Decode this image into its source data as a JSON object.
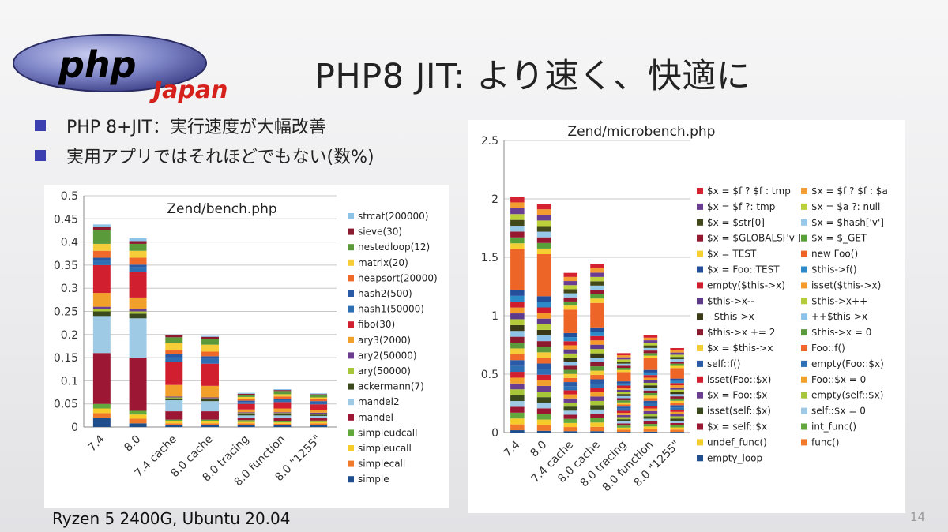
{
  "slide": {
    "title": "PHP8 JIT:  より速く、快適に",
    "logo_text": "php",
    "logo_sub": "Japan",
    "bullets": [
      "PHP 8+JIT：実行速度が大幅改善",
      "実用アプリではそれほどでもない(数%)"
    ],
    "footer": "Ryzen 5 2400G, Ubuntu 20.04",
    "page_number": "14"
  },
  "chart_data": [
    {
      "type": "bar",
      "stacked": true,
      "title": "Zend/bench.php",
      "ylim": [
        0,
        0.5
      ],
      "yticks": [
        "0",
        "0.05",
        "0.1",
        "0.15",
        "0.2",
        "0.25",
        "0.3",
        "0.35",
        "0.4",
        "0.45",
        "0.5"
      ],
      "grid": true,
      "legend_position": "right",
      "categories": [
        "7.4",
        "8.0",
        "7.4 cache",
        "8.0 cache",
        "8.0 tracing",
        "8.0 function",
        "8.0 \"1255\""
      ],
      "series": [
        {
          "name": "simple",
          "color": "#1f4e8c",
          "values": [
            0.02,
            0.008,
            0.005,
            0.005,
            0.004,
            0.004,
            0.004
          ]
        },
        {
          "name": "simplecall",
          "color": "#f07a2a",
          "values": [
            0.01,
            0.01,
            0.003,
            0.003,
            0.004,
            0.003,
            0.004
          ]
        },
        {
          "name": "simpleucall",
          "color": "#f5cc2a",
          "values": [
            0.01,
            0.009,
            0.004,
            0.004,
            0.003,
            0.003,
            0.003
          ]
        },
        {
          "name": "simpleudcall",
          "color": "#62a83d",
          "values": [
            0.01,
            0.008,
            0.004,
            0.004,
            0.004,
            0.003,
            0.003
          ]
        },
        {
          "name": "mandel",
          "color": "#9b1733",
          "values": [
            0.11,
            0.115,
            0.018,
            0.018,
            0.005,
            0.006,
            0.005
          ]
        },
        {
          "name": "mandel2",
          "color": "#9ecae6",
          "values": [
            0.08,
            0.085,
            0.024,
            0.022,
            0.005,
            0.006,
            0.005
          ]
        },
        {
          "name": "ackermann(7)",
          "color": "#3b4a1c",
          "values": [
            0.01,
            0.01,
            0.004,
            0.004,
            0.003,
            0.003,
            0.003
          ]
        },
        {
          "name": "ary(50000)",
          "color": "#a8c63a",
          "values": [
            0.005,
            0.005,
            0.002,
            0.002,
            0.002,
            0.002,
            0.002
          ]
        },
        {
          "name": "ary2(50000)",
          "color": "#6b3d8f",
          "values": [
            0.005,
            0.005,
            0.002,
            0.002,
            0.002,
            0.002,
            0.002
          ]
        },
        {
          "name": "ary3(2000)",
          "color": "#f2a02c",
          "values": [
            0.03,
            0.025,
            0.025,
            0.025,
            0.006,
            0.008,
            0.006
          ]
        },
        {
          "name": "fibo(30)",
          "color": "#d21f30",
          "values": [
            0.06,
            0.055,
            0.05,
            0.048,
            0.012,
            0.014,
            0.012
          ]
        },
        {
          "name": "hash1(50000)",
          "color": "#2e6fb3",
          "values": [
            0.01,
            0.01,
            0.01,
            0.01,
            0.004,
            0.004,
            0.004
          ]
        },
        {
          "name": "hash2(500)",
          "color": "#2a5aa6",
          "values": [
            0.006,
            0.006,
            0.006,
            0.006,
            0.003,
            0.003,
            0.003
          ]
        },
        {
          "name": "heapsort(20000)",
          "color": "#ef6a2a",
          "values": [
            0.015,
            0.015,
            0.01,
            0.01,
            0.004,
            0.005,
            0.004
          ]
        },
        {
          "name": "matrix(20)",
          "color": "#f4cd39",
          "values": [
            0.015,
            0.015,
            0.015,
            0.015,
            0.004,
            0.005,
            0.004
          ]
        },
        {
          "name": "nestedloop(12)",
          "color": "#5b9a3a",
          "values": [
            0.03,
            0.015,
            0.012,
            0.013,
            0.005,
            0.007,
            0.005
          ]
        },
        {
          "name": "sieve(30)",
          "color": "#8b1a2e",
          "values": [
            0.006,
            0.006,
            0.004,
            0.004,
            0.002,
            0.002,
            0.002
          ]
        },
        {
          "name": "strcat(200000)",
          "color": "#8ec3e8",
          "values": [
            0.006,
            0.006,
            0.002,
            0.002,
            0.002,
            0.002,
            0.002
          ]
        }
      ]
    },
    {
      "type": "bar",
      "stacked": true,
      "title": "Zend/microbench.php",
      "ylim": [
        0,
        2.5
      ],
      "yticks": [
        "0",
        "0.5",
        "1",
        "1.5",
        "2",
        "2.5"
      ],
      "grid": true,
      "legend_position": "right",
      "categories": [
        "7.4",
        "8.0",
        "7.4 cache",
        "8.0 cache",
        "8.0 tracing",
        "8.0 function",
        "8.0 \"1255\""
      ],
      "series": [
        {
          "name": "empty_loop",
          "color": "#1f4e8c",
          "values": [
            0.02,
            0.015,
            0.012,
            0.012,
            0.006,
            0.008,
            0.006
          ]
        },
        {
          "name": "func()",
          "color": "#f07a2a",
          "values": [
            0.05,
            0.048,
            0.035,
            0.037,
            0.018,
            0.022,
            0.019
          ]
        },
        {
          "name": "undef_func()",
          "color": "#f5cc2a",
          "values": [
            0.05,
            0.048,
            0.035,
            0.037,
            0.018,
            0.022,
            0.019
          ]
        },
        {
          "name": "int_func()",
          "color": "#62a83d",
          "values": [
            0.05,
            0.048,
            0.035,
            0.037,
            0.018,
            0.022,
            0.019
          ]
        },
        {
          "name": "$x = self::$x",
          "color": "#9b1733",
          "values": [
            0.05,
            0.048,
            0.035,
            0.037,
            0.018,
            0.022,
            0.019
          ]
        },
        {
          "name": "self::$x = 0",
          "color": "#9ecae6",
          "values": [
            0.05,
            0.048,
            0.035,
            0.037,
            0.018,
            0.022,
            0.019
          ]
        },
        {
          "name": "isset(self::$x)",
          "color": "#3b4a1c",
          "values": [
            0.05,
            0.048,
            0.035,
            0.037,
            0.018,
            0.022,
            0.019
          ]
        },
        {
          "name": "empty(self::$x)",
          "color": "#a8c63a",
          "values": [
            0.05,
            0.048,
            0.035,
            0.037,
            0.018,
            0.022,
            0.019
          ]
        },
        {
          "name": "$x = Foo::$x",
          "color": "#6b3d8f",
          "values": [
            0.05,
            0.048,
            0.035,
            0.037,
            0.018,
            0.022,
            0.019
          ]
        },
        {
          "name": "Foo::$x = 0",
          "color": "#f2a02c",
          "values": [
            0.05,
            0.048,
            0.035,
            0.037,
            0.018,
            0.022,
            0.019
          ]
        },
        {
          "name": "isset(Foo::$x)",
          "color": "#d21f30",
          "values": [
            0.05,
            0.048,
            0.035,
            0.037,
            0.018,
            0.022,
            0.019
          ]
        },
        {
          "name": "empty(Foo::$x)",
          "color": "#2e6fb3",
          "values": [
            0.05,
            0.048,
            0.035,
            0.037,
            0.018,
            0.022,
            0.019
          ]
        },
        {
          "name": "self::f()",
          "color": "#2a5aa6",
          "values": [
            0.05,
            0.048,
            0.035,
            0.037,
            0.018,
            0.022,
            0.019
          ]
        },
        {
          "name": "Foo::f()",
          "color": "#ef6a2a",
          "values": [
            0.05,
            0.048,
            0.035,
            0.037,
            0.018,
            0.022,
            0.019
          ]
        },
        {
          "name": "$x = $this->x",
          "color": "#f4cd39",
          "values": [
            0.05,
            0.048,
            0.035,
            0.037,
            0.018,
            0.022,
            0.019
          ]
        },
        {
          "name": "$this->x = 0",
          "color": "#5b9a3a",
          "values": [
            0.05,
            0.048,
            0.035,
            0.037,
            0.018,
            0.022,
            0.019
          ]
        },
        {
          "name": "$this->x += 2",
          "color": "#8b1a2e",
          "values": [
            0.05,
            0.048,
            0.035,
            0.037,
            0.018,
            0.022,
            0.019
          ]
        },
        {
          "name": "++$this->x",
          "color": "#8ec3e8",
          "values": [
            0.05,
            0.048,
            0.035,
            0.037,
            0.018,
            0.022,
            0.019
          ]
        },
        {
          "name": "--$this->x",
          "color": "#3a3a16",
          "values": [
            0.05,
            0.048,
            0.035,
            0.037,
            0.018,
            0.022,
            0.019
          ]
        },
        {
          "name": "$this->x++",
          "color": "#b4cc3a",
          "values": [
            0.05,
            0.048,
            0.035,
            0.037,
            0.018,
            0.022,
            0.019
          ]
        },
        {
          "name": "$this->x--",
          "color": "#5e3a8a",
          "values": [
            0.05,
            0.048,
            0.035,
            0.037,
            0.018,
            0.022,
            0.019
          ]
        },
        {
          "name": "isset($this->x)",
          "color": "#f39a2b",
          "values": [
            0.05,
            0.048,
            0.035,
            0.037,
            0.018,
            0.022,
            0.019
          ]
        },
        {
          "name": "empty($this->x)",
          "color": "#cf1d2d",
          "values": [
            0.05,
            0.048,
            0.035,
            0.037,
            0.018,
            0.022,
            0.019
          ]
        },
        {
          "name": "$this->f()",
          "color": "#2d8ac9",
          "values": [
            0.05,
            0.048,
            0.035,
            0.037,
            0.018,
            0.022,
            0.019
          ]
        },
        {
          "name": "$x = Foo::TEST",
          "color": "#234f9a",
          "values": [
            0.05,
            0.048,
            0.035,
            0.037,
            0.018,
            0.022,
            0.019
          ]
        },
        {
          "name": "new Foo()",
          "color": "#ee6528",
          "values": [
            0.35,
            0.36,
            0.2,
            0.21,
            0.08,
            0.1,
            0.09
          ]
        },
        {
          "name": "$x = TEST",
          "color": "#f6cf33",
          "values": [
            0.05,
            0.048,
            0.035,
            0.037,
            0.018,
            0.022,
            0.019
          ]
        },
        {
          "name": "$x = $_GET",
          "color": "#58a03a",
          "values": [
            0.05,
            0.048,
            0.035,
            0.037,
            0.018,
            0.022,
            0.019
          ]
        },
        {
          "name": "$x = $GLOBALS['v']",
          "color": "#961830",
          "values": [
            0.05,
            0.048,
            0.035,
            0.037,
            0.018,
            0.022,
            0.019
          ]
        },
        {
          "name": "$x = $hash['v']",
          "color": "#96c8e8",
          "values": [
            0.05,
            0.048,
            0.035,
            0.037,
            0.018,
            0.022,
            0.019
          ]
        },
        {
          "name": "$x = $str[0]",
          "color": "#43481a",
          "values": [
            0.05,
            0.048,
            0.035,
            0.037,
            0.018,
            0.022,
            0.019
          ]
        },
        {
          "name": "$x = $a ?: null",
          "color": "#bcd03c",
          "values": [
            0.05,
            0.048,
            0.035,
            0.037,
            0.018,
            0.022,
            0.019
          ]
        },
        {
          "name": "$x = $f ?: tmp",
          "color": "#6a3d92",
          "values": [
            0.05,
            0.048,
            0.035,
            0.037,
            0.018,
            0.022,
            0.019
          ]
        },
        {
          "name": "$x = $f ? $f : $a",
          "color": "#f39c32",
          "values": [
            0.05,
            0.048,
            0.035,
            0.037,
            0.018,
            0.022,
            0.019
          ]
        },
        {
          "name": "$x = $f ? $f : tmp",
          "color": "#d42230",
          "values": [
            0.05,
            0.048,
            0.035,
            0.037,
            0.018,
            0.022,
            0.019
          ]
        }
      ]
    }
  ]
}
